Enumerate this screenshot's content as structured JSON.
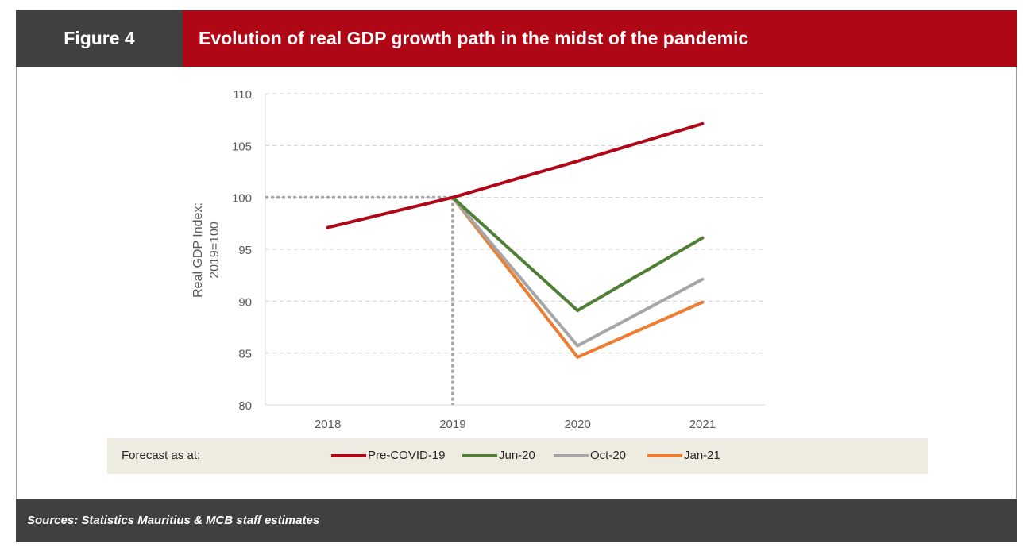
{
  "header": {
    "figure_label": "Figure 4",
    "title": "Evolution of real GDP growth path in the midst of the pandemic"
  },
  "footer": {
    "sources": "Sources: Statistics Mauritius & MCB staff estimates"
  },
  "legend": {
    "lead": "Forecast as at:"
  },
  "chart_data": {
    "type": "line",
    "ylabel_lines": [
      "Real GDP Index:",
      "2019=100"
    ],
    "categories": [
      "2018",
      "2019",
      "2020",
      "2021"
    ],
    "ylim": [
      80,
      110
    ],
    "yticks": [
      80,
      85,
      90,
      95,
      100,
      105,
      110
    ],
    "grid": true,
    "reference": {
      "year": "2019",
      "value": 100
    },
    "series": [
      {
        "name": "Pre-COVID-19",
        "color": "#b00716",
        "values": [
          97.1,
          100,
          103.5,
          107.1
        ]
      },
      {
        "name": "Jun-20",
        "color": "#4f7f35",
        "values": [
          null,
          100,
          89.1,
          96.1
        ]
      },
      {
        "name": "Oct-20",
        "color": "#a6a6a6",
        "values": [
          null,
          100,
          85.7,
          92.1
        ]
      },
      {
        "name": "Jan-21",
        "color": "#ed7d31",
        "values": [
          null,
          100,
          84.6,
          89.9
        ]
      }
    ]
  }
}
